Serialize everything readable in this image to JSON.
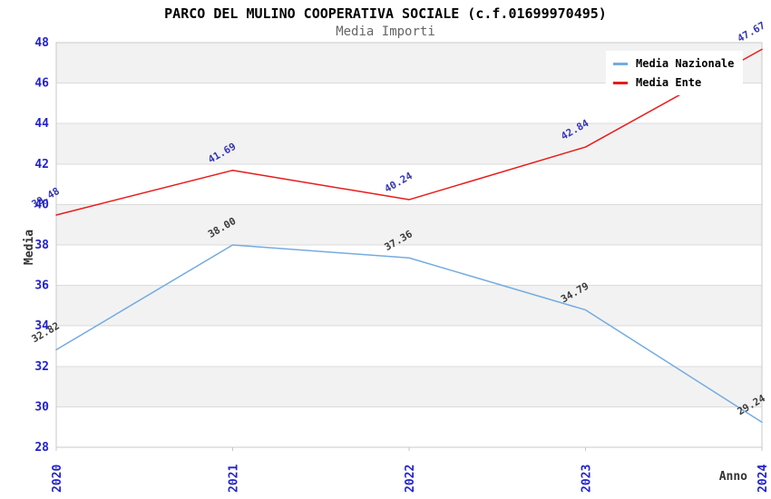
{
  "chart_data": {
    "type": "line",
    "title": "PARCO DEL MULINO COOPERATIVA SOCIALE (c.f.01699970495)",
    "subtitle": "Media Importi",
    "xlabel": "Anno",
    "ylabel": "Media",
    "xticks": [
      "2020",
      "2021",
      "2022",
      "2023",
      "2024"
    ],
    "yticks": [
      28,
      30,
      32,
      34,
      36,
      38,
      40,
      42,
      44,
      46,
      48
    ],
    "ylim": [
      28,
      48
    ],
    "ytick_step": 2,
    "grid": "horizontal-bands",
    "legend_position": "top-right",
    "series": [
      {
        "name": "Media Nazionale",
        "color": "#74ACDF",
        "label_color": "#3C3C3C",
        "values": [
          32.82,
          38.0,
          37.36,
          34.79,
          29.24
        ],
        "point_labels": [
          "32.82",
          "38.00",
          "37.36",
          "34.79",
          "29.24"
        ]
      },
      {
        "name": "Media Ente",
        "color": "#E81B1B",
        "label_color": "#3636B2",
        "values": [
          39.48,
          41.69,
          40.24,
          42.84,
          47.67
        ],
        "point_labels": [
          "39.48",
          "41.69",
          "40.24",
          "42.84",
          "47.67"
        ]
      }
    ],
    "colors": {
      "title": "#000000",
      "subtitle": "#666666",
      "tick_label": "#2222CC",
      "axis_label": "#333333",
      "band_fill": "#F2F2F2",
      "gridline": "#DBDBDB",
      "plot_border": "#C9C9C9",
      "background": "#FFFFFF"
    }
  }
}
